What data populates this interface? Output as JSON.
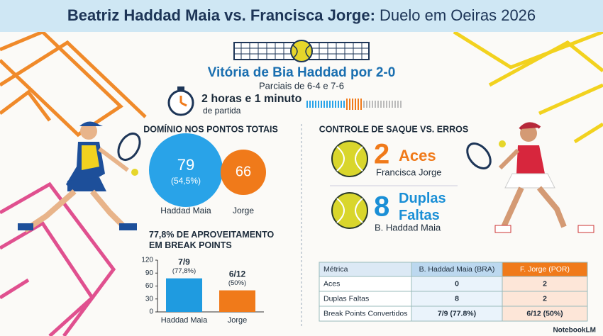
{
  "header": {
    "title_players": "Beatriz Haddad Maia vs. Francisca Jorge:",
    "title_event": "Duelo em Oeiras 2026"
  },
  "result": {
    "headline": "Vitória de Bia Haddad por 2-0",
    "sets": "Parciais de 6-4 e 7-6",
    "duration": "2 horas e 1 minuto",
    "duration_sub": "de partida"
  },
  "points": {
    "title": "DOMÍNIO NOS PONTOS TOTAIS",
    "players": [
      {
        "name": "Haddad Maia",
        "value": "79",
        "share": "(54,5%)"
      },
      {
        "name": "Jorge",
        "value": "66"
      }
    ]
  },
  "break_points": {
    "title": "77,8% DE APROVEITAMENTO\nEM BREAK POINTS"
  },
  "chart_data": {
    "type": "bar",
    "categories": [
      "Haddad Maia",
      "Jorge"
    ],
    "values": [
      77.8,
      50
    ],
    "value_labels": [
      "7/9\n(77,8%)",
      "6/12\n(50%)"
    ],
    "colors": [
      "#1f9be0",
      "#f07a1a"
    ],
    "ylim": [
      0,
      120
    ],
    "yticks": [
      0,
      30,
      60,
      90,
      120
    ],
    "grid": false
  },
  "serve": {
    "title": "CONTROLE DE SAQUE VS. ERROS",
    "items": [
      {
        "number": "2",
        "label": "Aces",
        "player": "Francisca Jorge"
      },
      {
        "number": "8",
        "label": "Duplas\nFaltas",
        "player": "B. Haddad Maia"
      }
    ]
  },
  "table": {
    "header": [
      "Métrica",
      "B. Haddad Maia (BRA)",
      "F. Jorge (POR)"
    ],
    "rows": [
      [
        "Aces",
        "0",
        "2"
      ],
      [
        "Duplas Faltas",
        "8",
        "2"
      ],
      [
        "Break Points Convertidos",
        "7/9 (77.8%)",
        "6/12 (50%)"
      ]
    ]
  },
  "footer": {
    "brand": "NotebookLM"
  }
}
